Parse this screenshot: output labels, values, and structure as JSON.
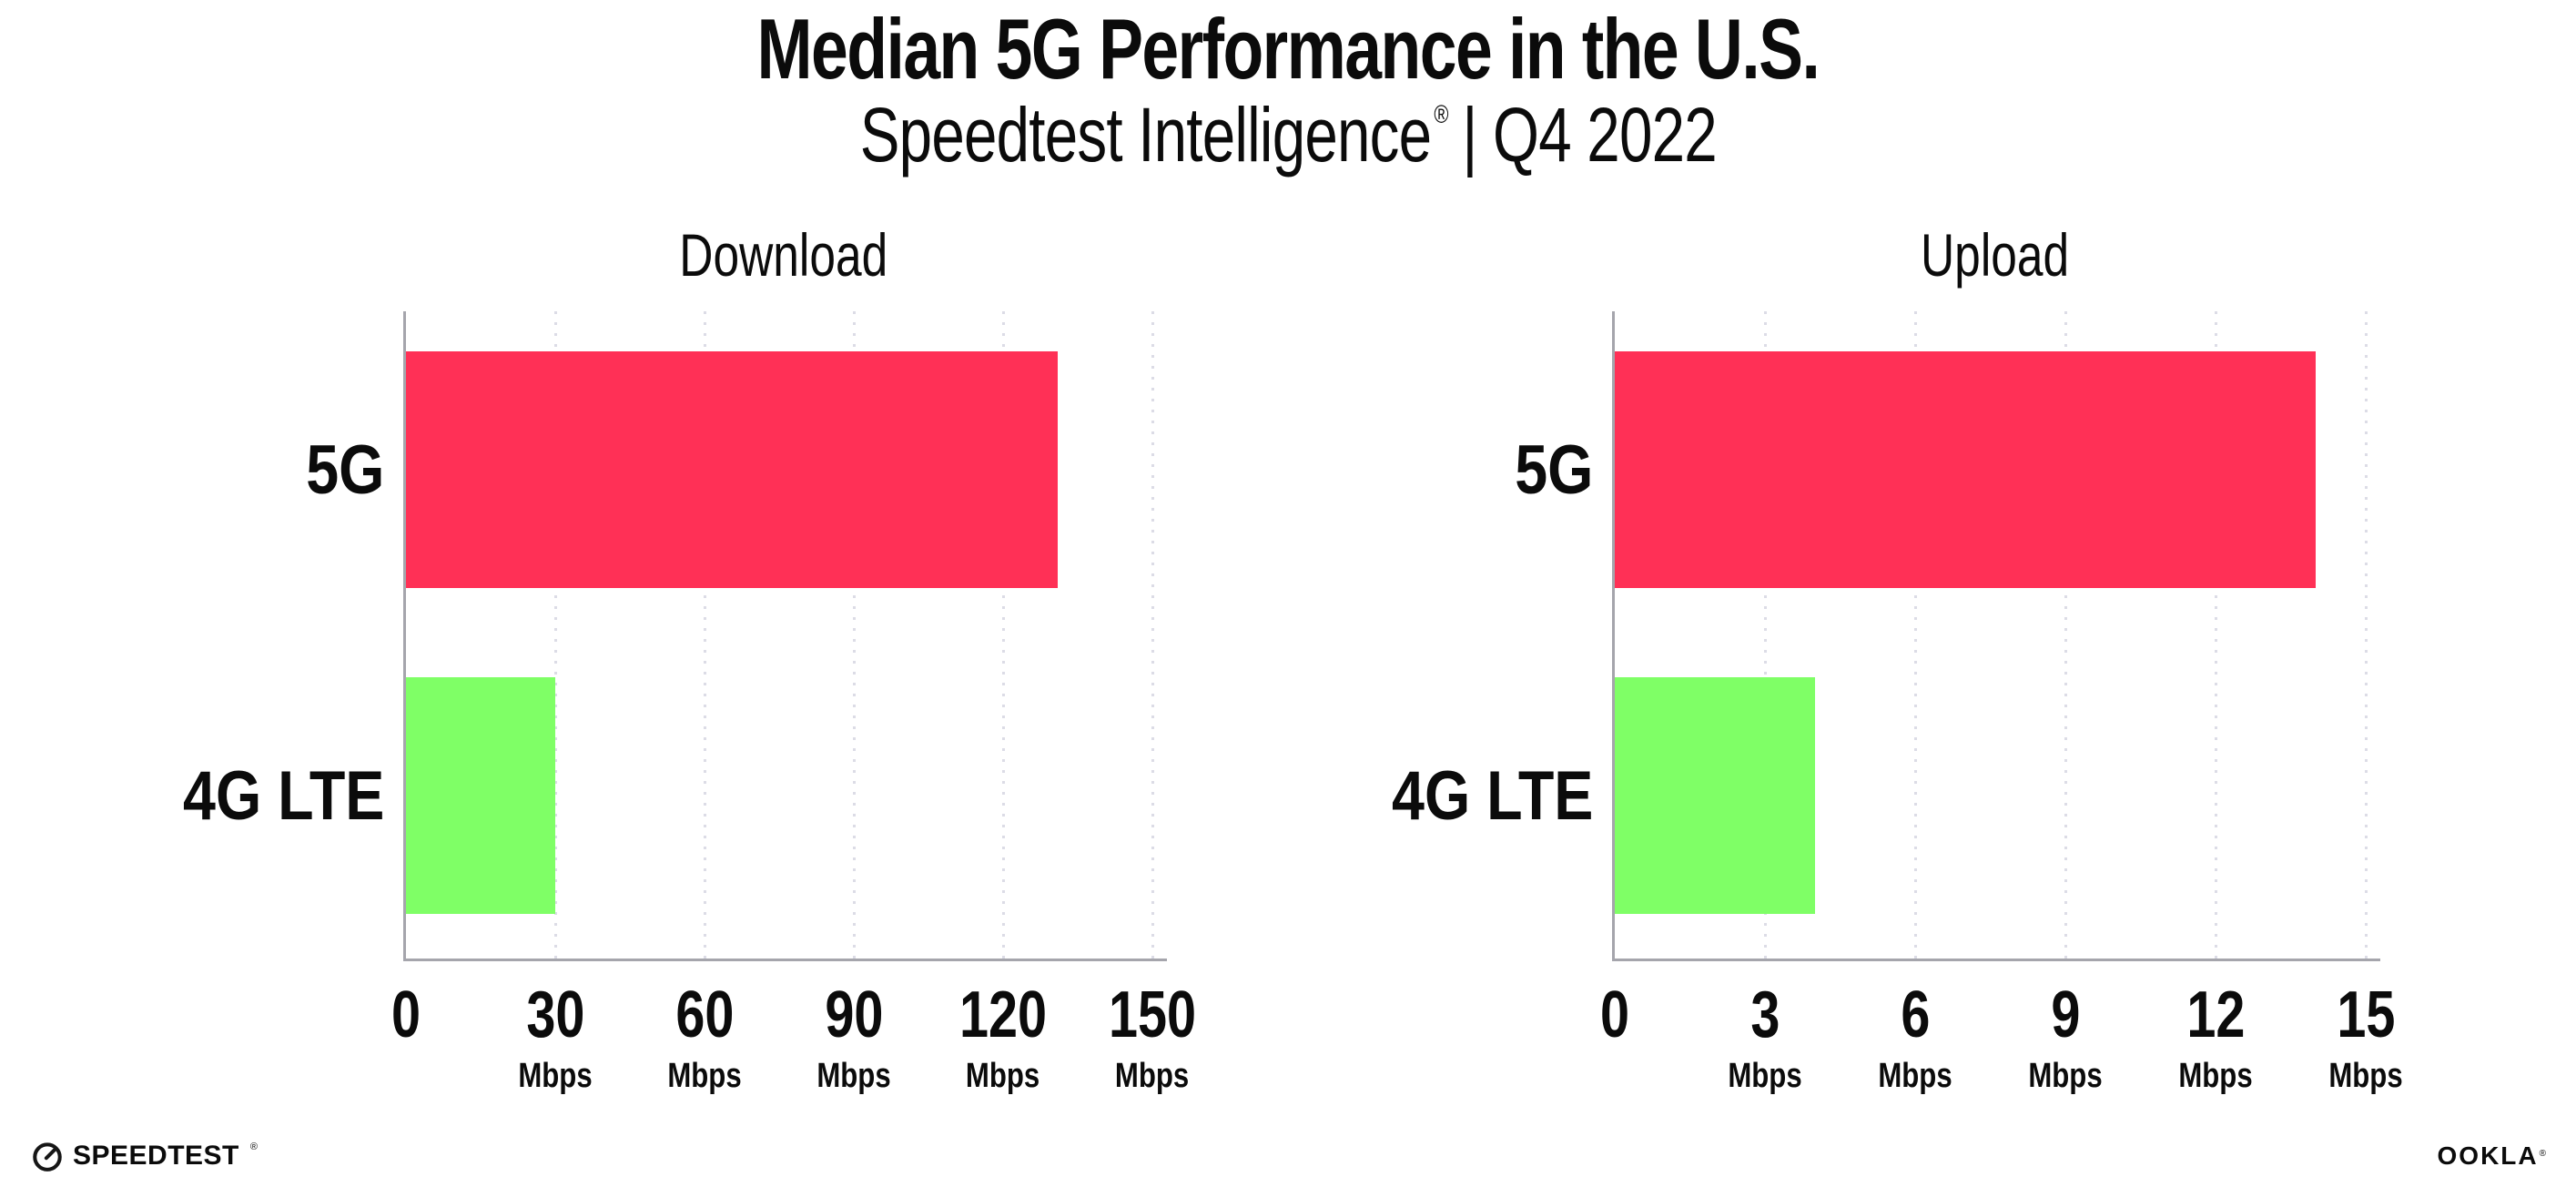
{
  "page": {
    "title": "Median 5G Performance in the U.S.",
    "subtitle": {
      "brand": "Speedtest Intelligence",
      "mark": "®",
      "period": "| Q4 2022"
    }
  },
  "chart_data": [
    {
      "type": "bar",
      "orientation": "horizontal",
      "title": "Download",
      "categories": [
        "5G",
        "4G LTE"
      ],
      "values": [
        131,
        30
      ],
      "unit": "Mbps",
      "xlabel": "",
      "ylabel": "",
      "xlim": [
        0,
        150
      ],
      "xticks": [
        0,
        30,
        60,
        90,
        120,
        150
      ],
      "bar_colors": [
        "#FF3056",
        "#7FFF66"
      ],
      "grid": "vertical-dotted",
      "legend": "none"
    },
    {
      "type": "bar",
      "orientation": "horizontal",
      "title": "Upload",
      "categories": [
        "5G",
        "4G LTE"
      ],
      "values": [
        14,
        4
      ],
      "unit": "Mbps",
      "xlabel": "",
      "ylabel": "",
      "xlim": [
        0,
        15
      ],
      "xticks": [
        0,
        3,
        6,
        9,
        12,
        15
      ],
      "bar_colors": [
        "#FF3056",
        "#7FFF66"
      ],
      "grid": "vertical-dotted",
      "legend": "none"
    }
  ],
  "footer": {
    "speedtest_label": "SPEEDTEST",
    "speedtest_mark": "®",
    "ookla_label": "OOKLA",
    "ookla_mark": "®"
  },
  "colors": {
    "bar_5g": "#FF3056",
    "bar_4g_lte": "#7FFF66",
    "axis_line": "#A5A5AC",
    "gridline": "#DCDCE6",
    "text": "#0B0B0B",
    "background": "#FFFFFF"
  }
}
